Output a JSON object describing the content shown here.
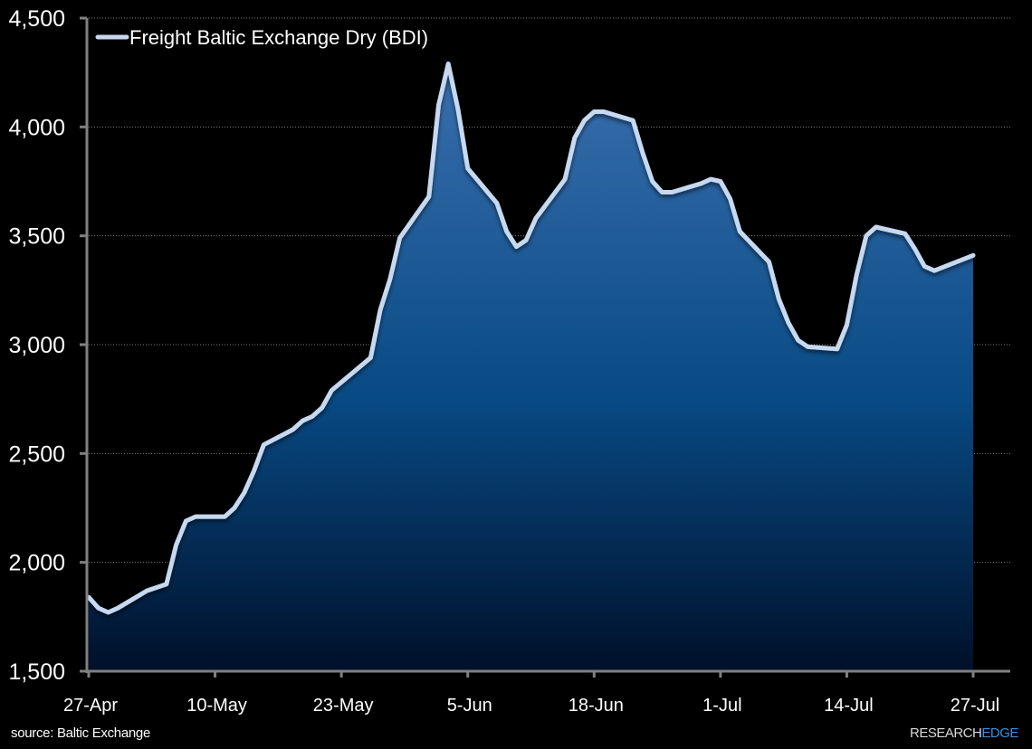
{
  "chart_data": {
    "type": "area",
    "title": "",
    "legend": {
      "entries": [
        "Freight Baltic Exchange Dry (BDI)"
      ],
      "position": "top-left"
    },
    "xlabel": "",
    "ylabel": "",
    "ylim": [
      1500,
      4500
    ],
    "y_ticks": [
      1500,
      2000,
      2500,
      3000,
      3500,
      4000,
      4500
    ],
    "y_tick_labels": [
      "1,500",
      "2,000",
      "2,500",
      "3,000",
      "3,500",
      "4,000",
      "4,500"
    ],
    "x_tick_labels": [
      "27-Apr",
      "10-May",
      "23-May",
      "5-Jun",
      "18-Jun",
      "1-Jul",
      "14-Jul",
      "27-Jul"
    ],
    "grid": {
      "horizontal": true,
      "style": "dotted"
    },
    "series": [
      {
        "name": "Freight Baltic Exchange Dry (BDI)",
        "line_color": "#c6d9f1",
        "fill_top_color": "#3a6fae",
        "fill_bottom_color": "#00102a",
        "points": [
          {
            "d": 0,
            "v": 1840
          },
          {
            "d": 1,
            "v": 1790
          },
          {
            "d": 2,
            "v": 1770
          },
          {
            "d": 3,
            "v": 1790
          },
          {
            "d": 6,
            "v": 1870
          },
          {
            "d": 8,
            "v": 1900
          },
          {
            "d": 9,
            "v": 2080
          },
          {
            "d": 10,
            "v": 2190
          },
          {
            "d": 11,
            "v": 2210
          },
          {
            "d": 14,
            "v": 2210
          },
          {
            "d": 15,
            "v": 2250
          },
          {
            "d": 16,
            "v": 2320
          },
          {
            "d": 17,
            "v": 2420
          },
          {
            "d": 18,
            "v": 2540
          },
          {
            "d": 21,
            "v": 2610
          },
          {
            "d": 22,
            "v": 2650
          },
          {
            "d": 23,
            "v": 2670
          },
          {
            "d": 24,
            "v": 2710
          },
          {
            "d": 25,
            "v": 2790
          },
          {
            "d": 29,
            "v": 2940
          },
          {
            "d": 30,
            "v": 3160
          },
          {
            "d": 31,
            "v": 3300
          },
          {
            "d": 32,
            "v": 3490
          },
          {
            "d": 35,
            "v": 3680
          },
          {
            "d": 36,
            "v": 4100
          },
          {
            "d": 37,
            "v": 4290
          },
          {
            "d": 38,
            "v": 4080
          },
          {
            "d": 39,
            "v": 3810
          },
          {
            "d": 42,
            "v": 3650
          },
          {
            "d": 43,
            "v": 3520
          },
          {
            "d": 44,
            "v": 3450
          },
          {
            "d": 45,
            "v": 3480
          },
          {
            "d": 46,
            "v": 3580
          },
          {
            "d": 49,
            "v": 3760
          },
          {
            "d": 50,
            "v": 3950
          },
          {
            "d": 51,
            "v": 4030
          },
          {
            "d": 52,
            "v": 4070
          },
          {
            "d": 53,
            "v": 4070
          },
          {
            "d": 56,
            "v": 4030
          },
          {
            "d": 57,
            "v": 3880
          },
          {
            "d": 58,
            "v": 3750
          },
          {
            "d": 59,
            "v": 3700
          },
          {
            "d": 60,
            "v": 3700
          },
          {
            "d": 63,
            "v": 3740
          },
          {
            "d": 64,
            "v": 3760
          },
          {
            "d": 65,
            "v": 3750
          },
          {
            "d": 66,
            "v": 3670
          },
          {
            "d": 67,
            "v": 3520
          },
          {
            "d": 70,
            "v": 3380
          },
          {
            "d": 71,
            "v": 3210
          },
          {
            "d": 72,
            "v": 3100
          },
          {
            "d": 73,
            "v": 3020
          },
          {
            "d": 74,
            "v": 2990
          },
          {
            "d": 77,
            "v": 2980
          },
          {
            "d": 78,
            "v": 3090
          },
          {
            "d": 79,
            "v": 3320
          },
          {
            "d": 80,
            "v": 3500
          },
          {
            "d": 81,
            "v": 3540
          },
          {
            "d": 84,
            "v": 3510
          },
          {
            "d": 85,
            "v": 3440
          },
          {
            "d": 86,
            "v": 3360
          },
          {
            "d": 87,
            "v": 3340
          },
          {
            "d": 91,
            "v": 3410
          }
        ]
      }
    ]
  },
  "footer": {
    "source": "source: Baltic Exchange",
    "brand_part1": "RESEARCH",
    "brand_part2": "EDGE"
  }
}
